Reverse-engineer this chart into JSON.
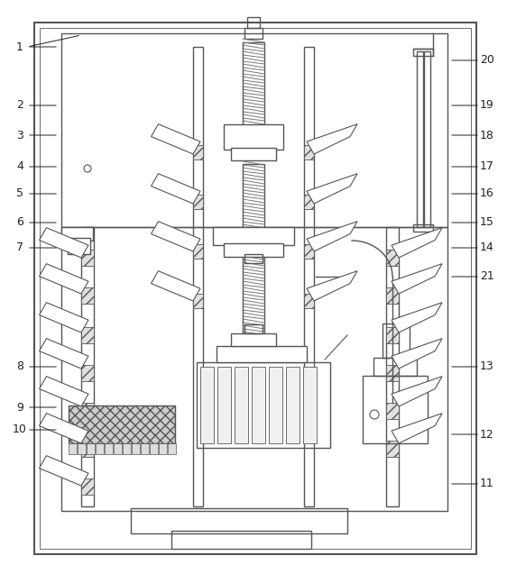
{
  "fig_width": 5.62,
  "fig_height": 6.47,
  "dpi": 100,
  "lc": "#555555",
  "bg": "#ffffff",
  "lw": 1.0,
  "lw2": 1.5,
  "fs": 9,
  "labels_left": [
    [
      "1",
      22,
      595
    ],
    [
      "2",
      22,
      530
    ],
    [
      "3",
      22,
      497
    ],
    [
      "4",
      22,
      462
    ],
    [
      "5",
      22,
      432
    ],
    [
      "6",
      22,
      400
    ],
    [
      "7",
      22,
      372
    ],
    [
      "8",
      22,
      240
    ],
    [
      "9",
      22,
      195
    ],
    [
      "10",
      22,
      170
    ]
  ],
  "labels_right": [
    [
      "20",
      540,
      580
    ],
    [
      "19",
      540,
      530
    ],
    [
      "18",
      540,
      497
    ],
    [
      "17",
      540,
      462
    ],
    [
      "16",
      540,
      432
    ],
    [
      "15",
      540,
      400
    ],
    [
      "14",
      540,
      372
    ],
    [
      "21",
      540,
      340
    ],
    [
      "13",
      540,
      240
    ],
    [
      "12",
      540,
      165
    ],
    [
      "11",
      540,
      110
    ]
  ]
}
